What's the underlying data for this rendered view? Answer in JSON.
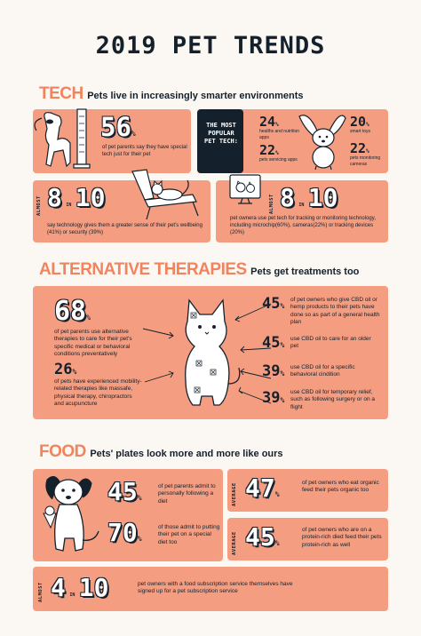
{
  "title": "2019 PET TRENDS",
  "tech": {
    "heading": "TECH",
    "subheading": "Pets live in increasingly smarter environments",
    "stat1": {
      "value": "56",
      "unit": "%",
      "text": "of pet parents say they have special tech just for their pet"
    },
    "popular": {
      "label": "THE MOST POPULAR PET TECH:",
      "items": [
        {
          "value": "24",
          "unit": "%",
          "text": "healths and nutrition apps"
        },
        {
          "value": "22",
          "unit": "%",
          "text": "pets servicing apps"
        },
        {
          "value": "20",
          "unit": "%",
          "text": "smart toys"
        },
        {
          "value": "22",
          "unit": "%",
          "text": "pets monitoring cameras"
        }
      ]
    },
    "stat2": {
      "prefix": "ALMOST",
      "a": "8",
      "in": "IN",
      "b": "10",
      "text": "say technology gives them a greater sense of their pet's wellbeing (41%) or security (39%)"
    },
    "stat3": {
      "prefix": "ALMOST",
      "a": "8",
      "in": "IN",
      "b": "10",
      "text": "pet ownera use pet tech for tracking or monitoring technology, including microchip(60%), cameras(22%) or tracking devices (20%)"
    }
  },
  "therapies": {
    "heading": "ALTERNATIVE THERAPIES",
    "subheading": "Pets get treatments too",
    "left": [
      {
        "value": "68",
        "unit": "%",
        "text": "of pet parents use alternative therapies to care for their pet's specific medical or behavioral conditions preventatively"
      },
      {
        "value": "26",
        "unit": "%",
        "text": "of pets have experienced mobility-related therapies like massafe, physical therapy, chiropractors and acupuncture"
      }
    ],
    "right": [
      {
        "value": "45",
        "unit": "%",
        "text": "of pet owners who give CBD oil or hemp products to their pets have done so as part of a general health plan"
      },
      {
        "value": "45",
        "unit": "%",
        "text": "use CBD oil to care for an older pet"
      },
      {
        "value": "39",
        "unit": "%",
        "text": "use CBD oil for a specific behavioral cindition"
      },
      {
        "value": "39",
        "unit": "%",
        "text": "use CBD oil for temporary relief, such as following surgery or on a flight"
      }
    ]
  },
  "food": {
    "heading": "FOOD",
    "subheading": "Pets' plates look more and more like ours",
    "stat1": {
      "value": "45",
      "unit": "%",
      "text": "of pet parents admit to personally following a diet"
    },
    "stat2": {
      "value": "70",
      "unit": "%",
      "text": "of those admit to putting their pet on a special diet too"
    },
    "avg1": {
      "prefix": "AVERAGE",
      "value": "47",
      "unit": "%",
      "text": "of pet owners who eat organic feed their pets organic too"
    },
    "avg2": {
      "prefix": "AVERAGE",
      "value": "45",
      "unit": "%",
      "text": "of pet owners who are on a protein-rich died feed their pets protein-rich as well"
    },
    "stat3": {
      "prefix": "ALMOST",
      "a": "4",
      "in": "IN",
      "b": "10",
      "text": "pet owners with a food subscription service themselves have signed up for a pet subscription service"
    }
  },
  "colors": {
    "accent": "#f0845f",
    "card": "#f49d80",
    "dark": "#14202c",
    "background": "#fbf7f2"
  }
}
